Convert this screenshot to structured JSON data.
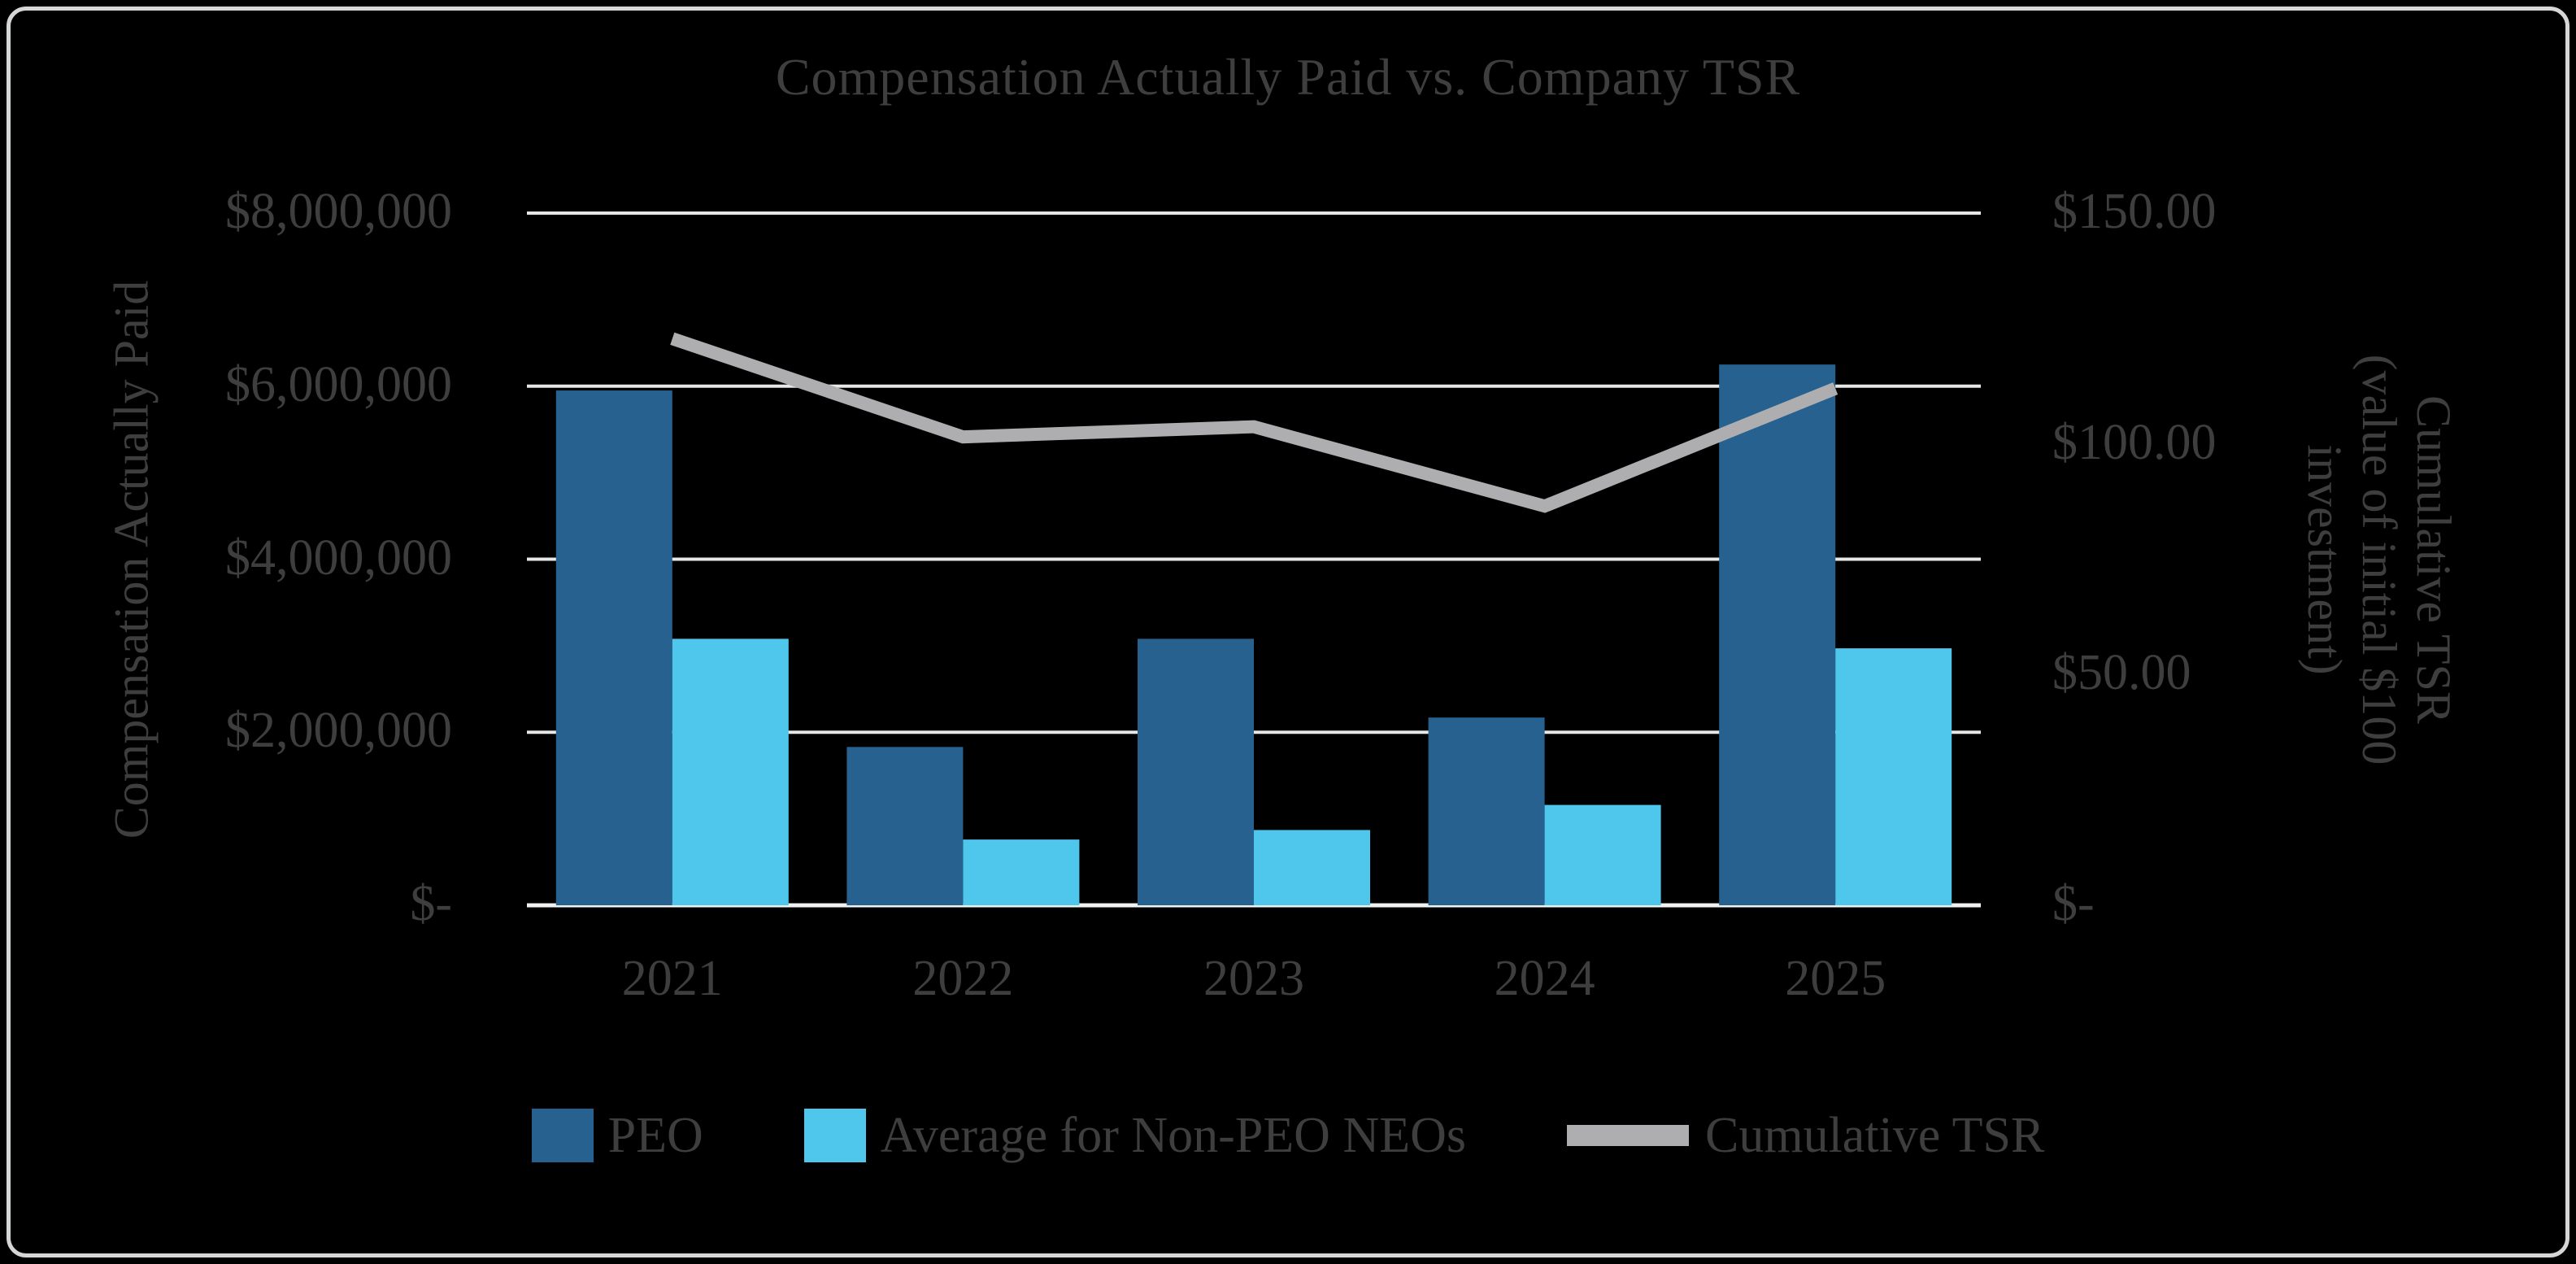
{
  "chart_data": {
    "type": "combo-bar-line",
    "title": "Compensation Actually Paid vs. Company TSR",
    "categories": [
      "2021",
      "2022",
      "2023",
      "2024",
      "2025"
    ],
    "series": [
      {
        "name": "PEO",
        "type": "bar",
        "axis": "left",
        "color": "#26618F",
        "values": [
          5950000,
          1830000,
          3080000,
          2170000,
          6250000
        ]
      },
      {
        "name": "Average for Non-PEO NEOs",
        "type": "bar",
        "axis": "left",
        "color": "#4FC7EC",
        "values": [
          3080000,
          760000,
          870000,
          1160000,
          2970000
        ]
      },
      {
        "name": "Cumulative TSR",
        "type": "line",
        "axis": "right",
        "color": "#AEAEB1",
        "values": [
          122.8,
          101.5,
          103.7,
          86.5,
          112.0
        ]
      }
    ],
    "left_axis": {
      "title": "Compensation Actually Paid",
      "ticks": [
        "$8,000,000",
        "$6,000,000",
        "$4,000,000",
        "$2,000,000",
        "$-"
      ],
      "min": 0,
      "max": 8000000
    },
    "right_axis": {
      "title_lines": [
        "Cumulative TSR",
        "(value of initial $100",
        "investment)"
      ],
      "ticks": [
        "$150.00",
        "$100.00",
        "$50.00",
        "$-"
      ],
      "min": 0,
      "max": 150
    },
    "grid": true,
    "legend_position": "bottom",
    "colors": {
      "background": "#000000",
      "frame_border": "#D5D6D6",
      "gridline": "#E6E8E8",
      "baseline": "#F0F1F1",
      "text": "#3E3E3E"
    }
  }
}
